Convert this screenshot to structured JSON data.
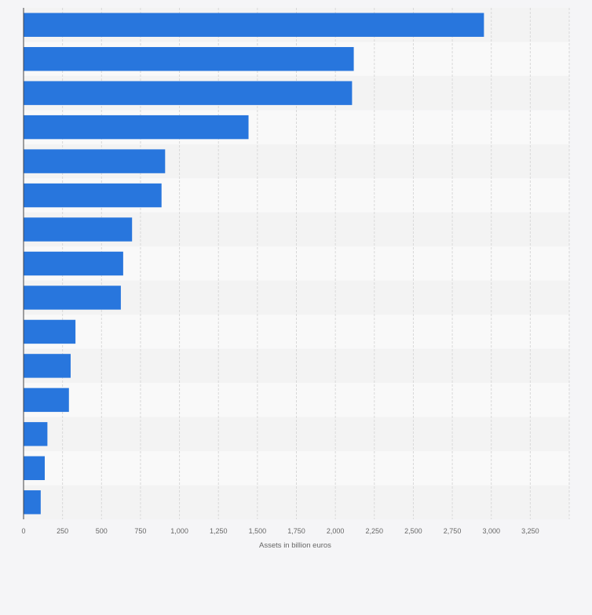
{
  "chart_data": {
    "type": "bar",
    "orientation": "horizontal",
    "categories": [
      "",
      "",
      "",
      "",
      "",
      "",
      "",
      "",
      "",
      "",
      "",
      "",
      "",
      "",
      ""
    ],
    "values": [
      2953,
      2118,
      2107,
      1443,
      908,
      885,
      696,
      639,
      624,
      333,
      302,
      291,
      153,
      136,
      110
    ],
    "xlabel": "Assets in billion euros",
    "ylabel": "",
    "xlim": [
      0,
      3500
    ],
    "xticks": [
      0,
      250,
      500,
      750,
      1000,
      1250,
      1500,
      1750,
      2000,
      2250,
      2500,
      2750,
      3000,
      3250
    ],
    "xtick_labels": [
      "0",
      "250",
      "500",
      "750",
      "1,000",
      "1,250",
      "1,500",
      "1,750",
      "2,000",
      "2,250",
      "2,500",
      "2,750",
      "3,000",
      "3,250"
    ],
    "grid": true,
    "bar_color": "#2876dd",
    "band_colors": [
      "#f3f3f3",
      "#f9f9f9"
    ],
    "background": "#f5f5f7"
  }
}
